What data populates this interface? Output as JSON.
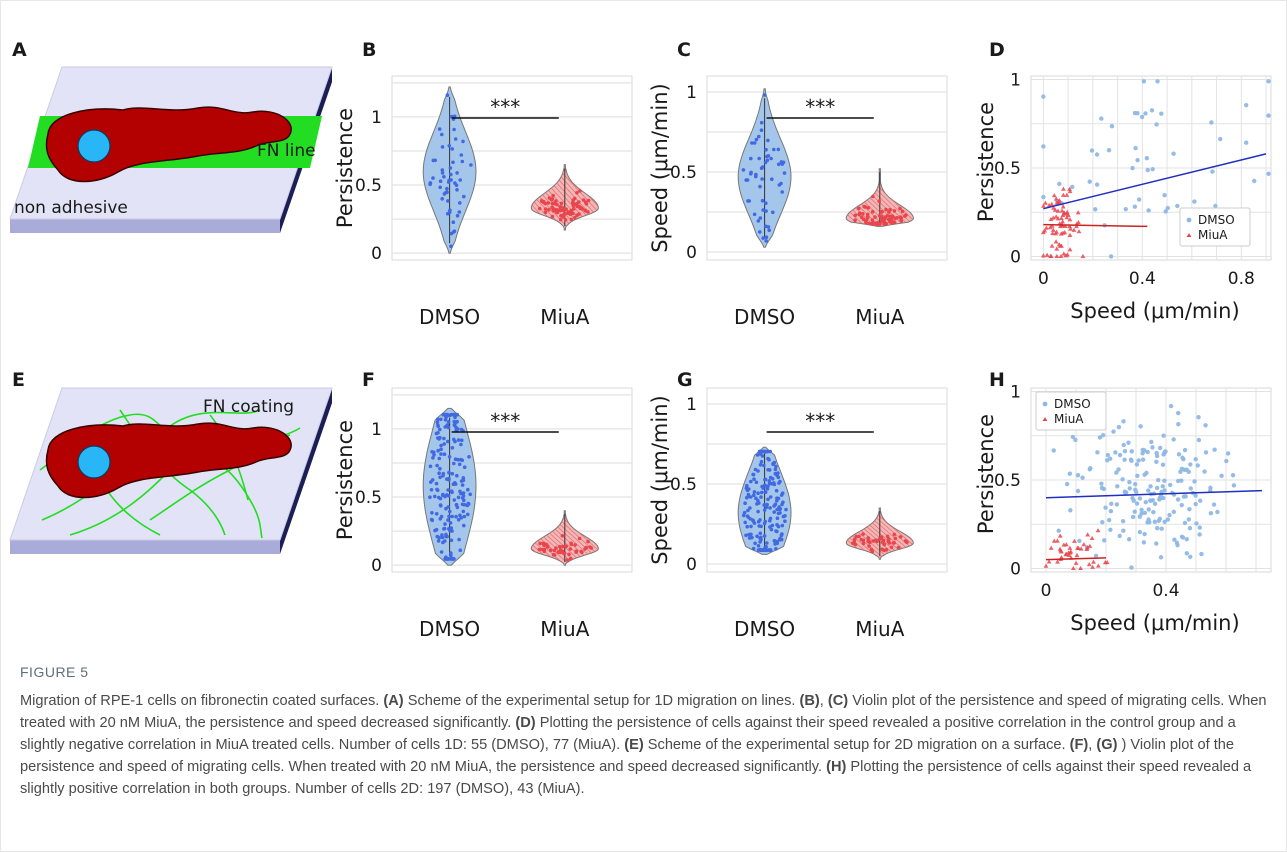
{
  "colors": {
    "dmso": "#4169e1",
    "dmso_fill": "#a4c6ea",
    "miua": "#e8454d",
    "miua_fill": "#f4b6b6",
    "dmso_line": "#1f2fbf",
    "miua_line": "#cc2222",
    "cell": "#b30000",
    "nucleus": "#29b6f6",
    "fn": "#22dd22",
    "substrate_top": "#e2e3f6",
    "substrate_side": "#a9acd8",
    "substrate_edge": "#1b1f55"
  },
  "panels": {
    "A": {
      "letter": "A",
      "fn_label": "FN line",
      "substrate_label": "non adhesive"
    },
    "E": {
      "letter": "E",
      "fn_label": "FN coating"
    }
  },
  "chart_data": [
    {
      "panel": "B",
      "type": "violin",
      "categories": [
        "DMSO",
        "MiuA"
      ],
      "ylabel": "Persistence",
      "yticks": [
        "0",
        "0.5",
        "1"
      ],
      "ylim": [
        -0.05,
        1.3
      ],
      "significance": "***",
      "grid": true,
      "series": [
        {
          "name": "DMSO",
          "n": 55,
          "median": 0.6,
          "range": [
            0.0,
            1.22
          ]
        },
        {
          "name": "MiuA",
          "n": 77,
          "median": 0.33,
          "range": [
            0.17,
            0.65
          ]
        }
      ]
    },
    {
      "panel": "C",
      "type": "violin",
      "categories": [
        "DMSO",
        "MiuA"
      ],
      "ylabel": "Speed (μm/min)",
      "yticks": [
        "0",
        "0.5",
        "1"
      ],
      "ylim": [
        -0.05,
        1.1
      ],
      "significance": "***",
      "grid": true,
      "series": [
        {
          "name": "DMSO",
          "n": 55,
          "median": 0.47,
          "range": [
            0.03,
            1.02
          ]
        },
        {
          "name": "MiuA",
          "n": 77,
          "median": 0.21,
          "range": [
            0.16,
            0.52
          ]
        }
      ]
    },
    {
      "panel": "D",
      "type": "scatter",
      "xlabel": "Speed (μm/min)",
      "ylabel": "Persistence",
      "xticks": [
        "0",
        "0.4",
        "0.8"
      ],
      "yticks": [
        "0",
        "0.5",
        "1"
      ],
      "xlim": [
        -0.05,
        0.92
      ],
      "ylim": [
        -0.02,
        1.02
      ],
      "legend": "bottom-right",
      "grid": true,
      "series": [
        {
          "name": "DMSO",
          "trend": [
            [
              0.0,
              0.27
            ],
            [
              0.9,
              0.58
            ]
          ]
        },
        {
          "name": "MiuA",
          "trend": [
            [
              0.0,
              0.18
            ],
            [
              0.42,
              0.17
            ]
          ]
        }
      ]
    },
    {
      "panel": "F",
      "type": "violin",
      "categories": [
        "DMSO",
        "MiuA"
      ],
      "ylabel": "Persistence",
      "yticks": [
        "0",
        "0.5",
        "1"
      ],
      "ylim": [
        -0.05,
        1.3
      ],
      "significance": "***",
      "grid": true,
      "series": [
        {
          "name": "DMSO",
          "n": 197,
          "median": 0.58,
          "range": [
            0.0,
            1.15
          ]
        },
        {
          "name": "MiuA",
          "n": 43,
          "median": 0.12,
          "range": [
            0.0,
            0.4
          ]
        }
      ]
    },
    {
      "panel": "G",
      "type": "violin",
      "categories": [
        "DMSO",
        "MiuA"
      ],
      "ylabel": "Speed (μm/min)",
      "yticks": [
        "0",
        "0.5",
        "1"
      ],
      "ylim": [
        -0.05,
        1.1
      ],
      "significance": "***",
      "grid": true,
      "series": [
        {
          "name": "DMSO",
          "n": 197,
          "median": 0.32,
          "range": [
            0.06,
            0.73
          ]
        },
        {
          "name": "MiuA",
          "n": 43,
          "median": 0.13,
          "range": [
            0.03,
            0.35
          ]
        }
      ]
    },
    {
      "panel": "H",
      "type": "scatter",
      "xlabel": "Speed (μm/min)",
      "ylabel": "Persistence",
      "xticks": [
        "0",
        "0.4"
      ],
      "yticks": [
        "0",
        "0.5",
        "1"
      ],
      "xlim": [
        -0.05,
        0.75
      ],
      "ylim": [
        -0.02,
        1.02
      ],
      "legend": "top-left",
      "grid": true,
      "series": [
        {
          "name": "DMSO",
          "trend": [
            [
              0.0,
              0.4
            ],
            [
              0.72,
              0.44
            ]
          ]
        },
        {
          "name": "MiuA",
          "trend": [
            [
              0.0,
              0.05
            ],
            [
              0.2,
              0.06
            ]
          ]
        }
      ]
    }
  ],
  "caption": {
    "title": "FIGURE 5",
    "body": "Migration of RPE-1 cells on fibronectin coated surfaces. (A) Scheme of the experimental setup for 1D migration on lines. (B), (C) Violin plot of the persistence and speed of migrating cells. When treated with 20 nM MiuA, the persistence and speed decreased significantly. (D) Plotting the persistence of cells against their speed revealed a positive correlation in the control group and a slightly negative correlation in MiuA treated cells. Number of cells 1D: 55 (DMSO), 77 (MiuA). (E) Scheme of the experimental setup for 2D migration on a surface. (F), (G) ) Violin plot of the persistence and speed of migrating cells. When treated with 20 nM MiuA, the persistence and speed decreased significantly. (H) Plotting the persistence of cells against their speed revealed a slightly positive correlation in both groups. Number of cells 2D: 197 (DMSO), 43 (MiuA)."
  }
}
